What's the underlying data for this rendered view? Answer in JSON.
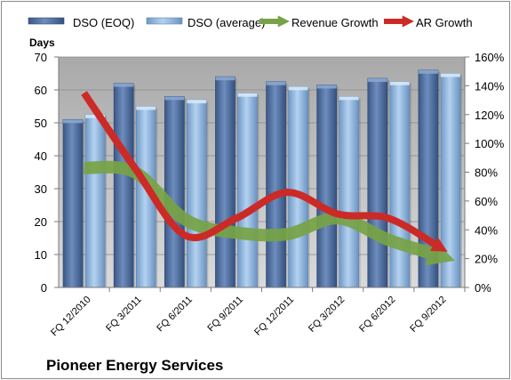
{
  "chart_data": {
    "type": "bar",
    "categories": [
      "FQ 12/2010",
      "FQ 3/2011",
      "FQ 6/2011",
      "FQ 9/2011",
      "FQ 12/2011",
      "FQ 3/2012",
      "FQ 6/2012",
      "FQ 9/2012"
    ],
    "series": [
      {
        "name": "DSO (EOQ)",
        "axis": "left",
        "kind": "bar",
        "color": "#4f6f9f",
        "values": [
          51,
          62,
          58,
          64,
          62.5,
          61.5,
          63.5,
          66
        ]
      },
      {
        "name": "DSO (average)",
        "axis": "left",
        "kind": "bar",
        "color": "#8fb4dc",
        "values": [
          52.5,
          55,
          57,
          59,
          61,
          58,
          62.5,
          65
        ]
      },
      {
        "name": "Revenue Growth",
        "axis": "right",
        "kind": "line",
        "color": "#77a346",
        "values": [
          0.83,
          0.8,
          0.47,
          0.38,
          0.37,
          0.48,
          0.33,
          0.22
        ]
      },
      {
        "name": "AR Growth",
        "axis": "right",
        "kind": "line",
        "color": "#cc2a27",
        "values": [
          1.35,
          0.83,
          0.36,
          0.48,
          0.66,
          0.51,
          0.48,
          0.28
        ]
      }
    ],
    "ylabel": "Days",
    "ylim": [
      0,
      70
    ],
    "yticks": [
      "0",
      "10",
      "20",
      "30",
      "40",
      "50",
      "60",
      "70"
    ],
    "y2lim": [
      0,
      1.6
    ],
    "y2ticks": [
      "0%",
      "20%",
      "40%",
      "60%",
      "80%",
      "100%",
      "120%",
      "140%",
      "160%"
    ],
    "legend_position": "top",
    "grid": true,
    "plot_background": "#c0c0c0"
  },
  "company": "Pioneer Energy Services"
}
